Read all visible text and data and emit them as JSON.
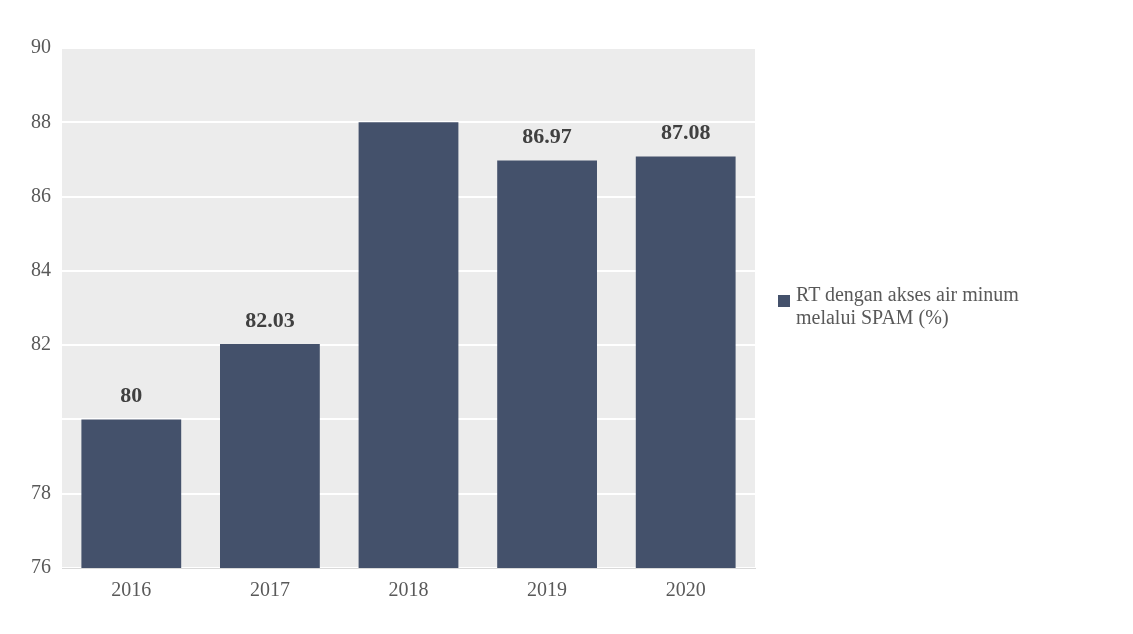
{
  "chart_data": {
    "type": "bar",
    "categories": [
      "2016",
      "2017",
      "2018",
      "2019",
      "2020"
    ],
    "series": [
      {
        "name": "RT dengan akses air minum melalui SPAM (%)",
        "color": "#44516b",
        "values": [
          80,
          82.03,
          88,
          86.97,
          87.08
        ],
        "value_labels": [
          "80",
          "82.03",
          null,
          "86.97",
          "87.08"
        ]
      }
    ],
    "ylim": [
      76,
      90
    ],
    "yticks": [
      76,
      78,
      {
        "value": 80,
        "label": null
      },
      82,
      84,
      86,
      88,
      90
    ],
    "grid": "y",
    "legend": "right"
  }
}
